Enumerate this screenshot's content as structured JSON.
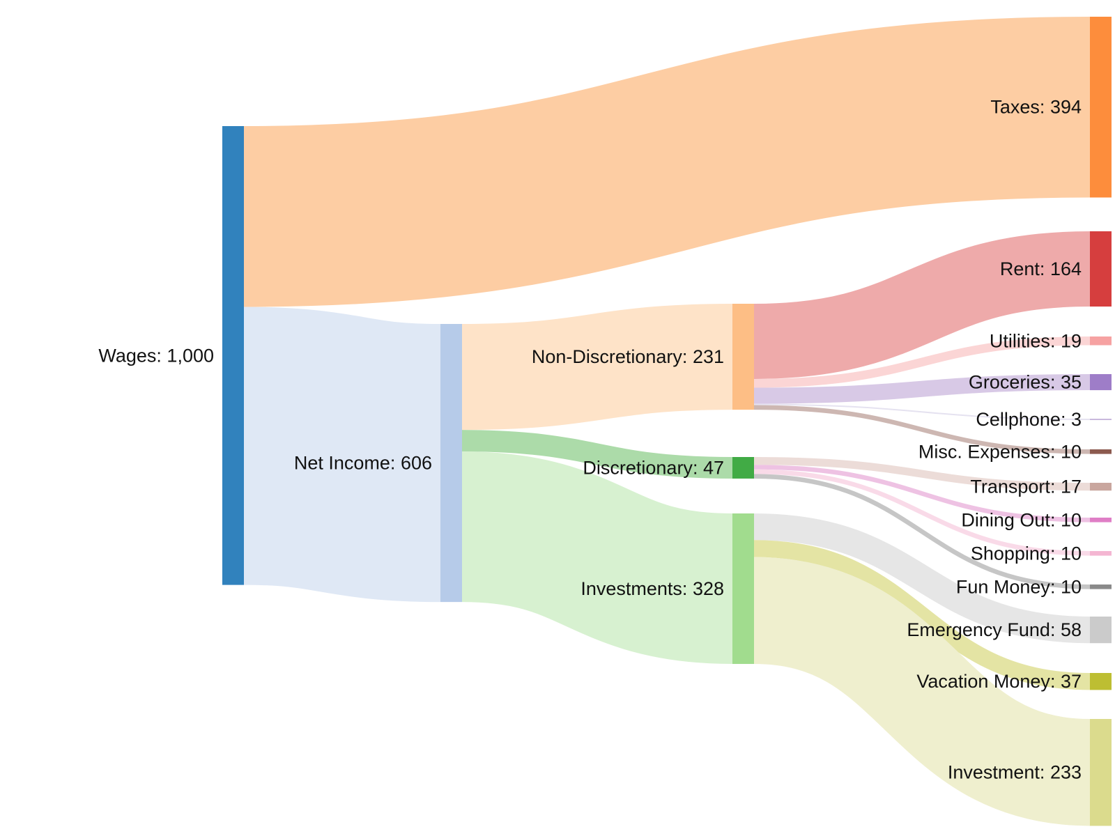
{
  "chart_data": {
    "type": "sankey",
    "title": "",
    "nodes": [
      {
        "id": "wages",
        "name": "Wages",
        "value": 1000,
        "value_text": "1,000",
        "color": "#3182bd"
      },
      {
        "id": "taxes",
        "name": "Taxes",
        "value": 394,
        "value_text": "394",
        "color": "#fd8d3c"
      },
      {
        "id": "net_income",
        "name": "Net Income",
        "value": 606,
        "value_text": "606",
        "color": "#b6cbe9"
      },
      {
        "id": "non_discretionary",
        "name": "Non-Discretionary",
        "value": 231,
        "value_text": "231",
        "color": "#fdbe85"
      },
      {
        "id": "discretionary",
        "name": "Discretionary",
        "value": 47,
        "value_text": "47",
        "color": "#41ab45"
      },
      {
        "id": "investments",
        "name": "Investments",
        "value": 328,
        "value_text": "328",
        "color": "#a1dc8e"
      },
      {
        "id": "rent",
        "name": "Rent",
        "value": 164,
        "value_text": "164",
        "color": "#d63e3e"
      },
      {
        "id": "utilities",
        "name": "Utilities",
        "value": 19,
        "value_text": "19",
        "color": "#f6a2a2"
      },
      {
        "id": "groceries",
        "name": "Groceries",
        "value": 35,
        "value_text": "35",
        "color": "#9e7dc8"
      },
      {
        "id": "cellphone",
        "name": "Cellphone",
        "value": 3,
        "value_text": "3",
        "color": "#c9b8dd"
      },
      {
        "id": "misc",
        "name": "Misc. Expenses",
        "value": 10,
        "value_text": "10",
        "color": "#8c5a4f"
      },
      {
        "id": "transport",
        "name": "Transport",
        "value": 17,
        "value_text": "17",
        "color": "#c9a69e"
      },
      {
        "id": "dining",
        "name": "Dining Out",
        "value": 10,
        "value_text": "10",
        "color": "#df7ec6"
      },
      {
        "id": "shopping",
        "name": "Shopping",
        "value": 10,
        "value_text": "10",
        "color": "#f4b6d2"
      },
      {
        "id": "fun",
        "name": "Fun Money",
        "value": 10,
        "value_text": "10",
        "color": "#8a8a8a"
      },
      {
        "id": "emergency",
        "name": "Emergency Fund",
        "value": 58,
        "value_text": "58",
        "color": "#cbcbcb"
      },
      {
        "id": "vacation",
        "name": "Vacation Money",
        "value": 37,
        "value_text": "37",
        "color": "#bdbe32"
      },
      {
        "id": "investment",
        "name": "Investment",
        "value": 233,
        "value_text": "233",
        "color": "#dbdb8d"
      }
    ],
    "links": [
      {
        "source": "wages",
        "target": "taxes",
        "value": 394,
        "color": "#fdcda3"
      },
      {
        "source": "wages",
        "target": "net_income",
        "value": 606,
        "color": "#dfe8f5"
      },
      {
        "source": "net_income",
        "target": "non_discretionary",
        "value": 231,
        "color": "#fee3c8"
      },
      {
        "source": "net_income",
        "target": "discretionary",
        "value": 47,
        "color": "#acdba9"
      },
      {
        "source": "net_income",
        "target": "investments",
        "value": 328,
        "color": "#d7f1d0"
      },
      {
        "source": "non_discretionary",
        "target": "rent",
        "value": 164,
        "color": "#eeaaaa"
      },
      {
        "source": "non_discretionary",
        "target": "utilities",
        "value": 19,
        "color": "#fbd5d5"
      },
      {
        "source": "non_discretionary",
        "target": "groceries",
        "value": 35,
        "color": "#d8c9e6"
      },
      {
        "source": "non_discretionary",
        "target": "cellphone",
        "value": 3,
        "color": "#e5e2f0"
      },
      {
        "source": "non_discretionary",
        "target": "misc",
        "value": 10,
        "color": "#cdb7b2"
      },
      {
        "source": "discretionary",
        "target": "transport",
        "value": 17,
        "color": "#ecdcd8"
      },
      {
        "source": "discretionary",
        "target": "dining",
        "value": 10,
        "color": "#eec2e3"
      },
      {
        "source": "discretionary",
        "target": "shopping",
        "value": 10,
        "color": "#f9dae8"
      },
      {
        "source": "discretionary",
        "target": "fun",
        "value": 10,
        "color": "#c6c6c6"
      },
      {
        "source": "investments",
        "target": "emergency",
        "value": 58,
        "color": "#e6e6e6"
      },
      {
        "source": "investments",
        "target": "vacation",
        "value": 37,
        "color": "#e4e4a4"
      },
      {
        "source": "investments",
        "target": "investment",
        "value": 233,
        "color": "#efefce"
      }
    ]
  }
}
